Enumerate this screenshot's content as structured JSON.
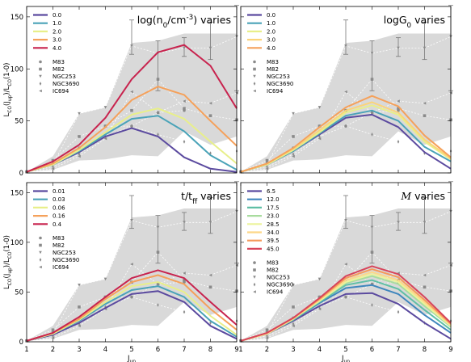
{
  "figure": {
    "ylabel": "L$_{CO}$(J$_{up}$)/L$_{CO}$(1-0)",
    "xlabel": "J$_{up}$",
    "x_ticks": [
      "1",
      "2",
      "3",
      "4",
      "5",
      "6",
      "7",
      "8",
      "9"
    ],
    "y_ticks": [
      "0",
      "50",
      "100",
      "150"
    ]
  },
  "chart_data": [
    {
      "type": "line",
      "title": "log(n$_0$/cm$^{-3}$) varies",
      "x": [
        1,
        2,
        3,
        4,
        5,
        6,
        7,
        8,
        9
      ],
      "xlim": [
        1,
        9
      ],
      "ylim": [
        0,
        160
      ],
      "series": [
        {
          "name": "0.0",
          "color": "#5b4a9f",
          "values": [
            1,
            8,
            20,
            35,
            43,
            35,
            15,
            4,
            1
          ]
        },
        {
          "name": "1.0",
          "color": "#4aa3b8",
          "values": [
            1,
            8,
            21,
            37,
            52,
            55,
            40,
            17,
            3
          ]
        },
        {
          "name": "2.0",
          "color": "#e8ef8a",
          "values": [
            1,
            8,
            22,
            39,
            56,
            62,
            52,
            30,
            9
          ]
        },
        {
          "name": "3.0",
          "color": "#f5a15b",
          "values": [
            1,
            9,
            24,
            44,
            70,
            83,
            75,
            50,
            26
          ]
        },
        {
          "name": "4.0",
          "color": "#c8234e",
          "values": [
            1,
            11,
            27,
            53,
            90,
            116,
            123,
            103,
            62
          ]
        }
      ]
    },
    {
      "type": "line",
      "title": "logG$_0$ varies",
      "x": [
        1,
        2,
        3,
        4,
        5,
        6,
        7,
        8,
        9
      ],
      "xlim": [
        1,
        9
      ],
      "ylim": [
        0,
        160
      ],
      "series": [
        {
          "name": "0.0",
          "color": "#5b4a9f",
          "values": [
            1,
            8,
            21,
            37,
            53,
            56,
            44,
            20,
            4
          ]
        },
        {
          "name": "1.0",
          "color": "#4aa3b8",
          "values": [
            1,
            8,
            21,
            38,
            55,
            60,
            50,
            25,
            11
          ]
        },
        {
          "name": "2.0",
          "color": "#e8ef8a",
          "values": [
            1,
            8,
            22,
            39,
            58,
            65,
            56,
            30,
            13
          ]
        },
        {
          "name": "3.0",
          "color": "#fbd47a",
          "values": [
            1,
            9,
            23,
            41,
            60,
            68,
            58,
            32,
            14
          ]
        },
        {
          "name": "4.0",
          "color": "#f5a15b",
          "values": [
            1,
            9,
            24,
            44,
            63,
            74,
            64,
            36,
            15
          ]
        }
      ]
    },
    {
      "type": "line",
      "title": "t/t$_{ff}$ varies",
      "x": [
        1,
        2,
        3,
        4,
        5,
        6,
        7,
        8,
        9
      ],
      "xlim": [
        1,
        9
      ],
      "ylim": [
        0,
        160
      ],
      "series": [
        {
          "name": "0.01",
          "color": "#5b4a9f",
          "values": [
            1,
            7,
            19,
            34,
            48,
            51,
            40,
            16,
            3
          ]
        },
        {
          "name": "0.03",
          "color": "#4aa3b8",
          "values": [
            1,
            8,
            21,
            38,
            52,
            56,
            45,
            21,
            5
          ]
        },
        {
          "name": "0.06",
          "color": "#e8ef8a",
          "values": [
            1,
            8,
            22,
            40,
            56,
            60,
            50,
            26,
            7
          ]
        },
        {
          "name": "0.16",
          "color": "#f5a15b",
          "values": [
            1,
            9,
            23,
            43,
            60,
            67,
            58,
            33,
            12
          ]
        },
        {
          "name": "0.4",
          "color": "#c8234e",
          "values": [
            1,
            9,
            25,
            45,
            64,
            72,
            64,
            40,
            17
          ]
        }
      ]
    },
    {
      "type": "line",
      "title": "$\\mathcal{M}$ varies",
      "x": [
        1,
        2,
        3,
        4,
        5,
        6,
        7,
        8,
        9
      ],
      "xlim": [
        1,
        9
      ],
      "ylim": [
        0,
        160
      ],
      "series": [
        {
          "name": "6.5",
          "color": "#5b4a9f",
          "values": [
            1,
            8,
            21,
            36,
            48,
            49,
            38,
            19,
            3
          ]
        },
        {
          "name": "12.0",
          "color": "#3f86bd",
          "values": [
            1,
            8,
            22,
            39,
            54,
            57,
            48,
            27,
            9
          ]
        },
        {
          "name": "17.5",
          "color": "#5fbfa5",
          "values": [
            1,
            8,
            22,
            40,
            57,
            62,
            53,
            32,
            12
          ]
        },
        {
          "name": "23.0",
          "color": "#a8dc9e",
          "values": [
            1,
            8,
            23,
            41,
            59,
            66,
            58,
            36,
            15
          ]
        },
        {
          "name": "28.5",
          "color": "#ecf49b",
          "values": [
            1,
            8,
            23,
            41,
            60,
            68,
            60,
            38,
            16
          ]
        },
        {
          "name": "34.0",
          "color": "#fdd889",
          "values": [
            1,
            8,
            23,
            42,
            62,
            70,
            62,
            40,
            17
          ]
        },
        {
          "name": "39.5",
          "color": "#f59a5a",
          "values": [
            1,
            9,
            24,
            43,
            64,
            73,
            65,
            42,
            18
          ]
        },
        {
          "name": "45.0",
          "color": "#d7455b",
          "values": [
            1,
            9,
            24,
            44,
            66,
            76,
            68,
            45,
            19
          ]
        }
      ]
    }
  ],
  "observations": {
    "band_upper": [
      1,
      16,
      57,
      63,
      125,
      127,
      134,
      134,
      134
    ],
    "band_lower": [
      1,
      3,
      12,
      13,
      17,
      16,
      40,
      27,
      35
    ],
    "band_color": "#d9d9d9",
    "markers": [
      {
        "name": "M83",
        "symbol": "circle",
        "values": [
          1,
          10,
          24,
          45,
          45,
          58,
          60,
          null,
          null
        ]
      },
      {
        "name": "M82",
        "symbol": "square",
        "values": [
          1,
          12,
          35,
          45,
          60,
          90,
          62,
          55,
          51
        ]
      },
      {
        "name": "NGC253",
        "symbol": "tri_down",
        "values": [
          1,
          8,
          57,
          63,
          122,
          115,
          120,
          120,
          131
        ]
      },
      {
        "name": "NGC3690",
        "symbol": "diamond",
        "values": [
          1,
          6,
          18,
          35,
          45,
          37,
          30,
          19,
          21
        ]
      },
      {
        "name": "IC694",
        "symbol": "tri_left",
        "values": [
          1,
          4,
          16,
          33,
          78,
          58,
          69,
          67,
          77
        ]
      }
    ],
    "errorbars": [
      {
        "x": 5,
        "low": 114,
        "high": 147
      },
      {
        "x": 6,
        "low": 79,
        "high": 127
      },
      {
        "x": 7,
        "low": 112,
        "high": 130
      },
      {
        "x": 8,
        "low": 109,
        "high": 145
      },
      {
        "x": 9,
        "low": 79,
        "high": 161
      }
    ]
  }
}
